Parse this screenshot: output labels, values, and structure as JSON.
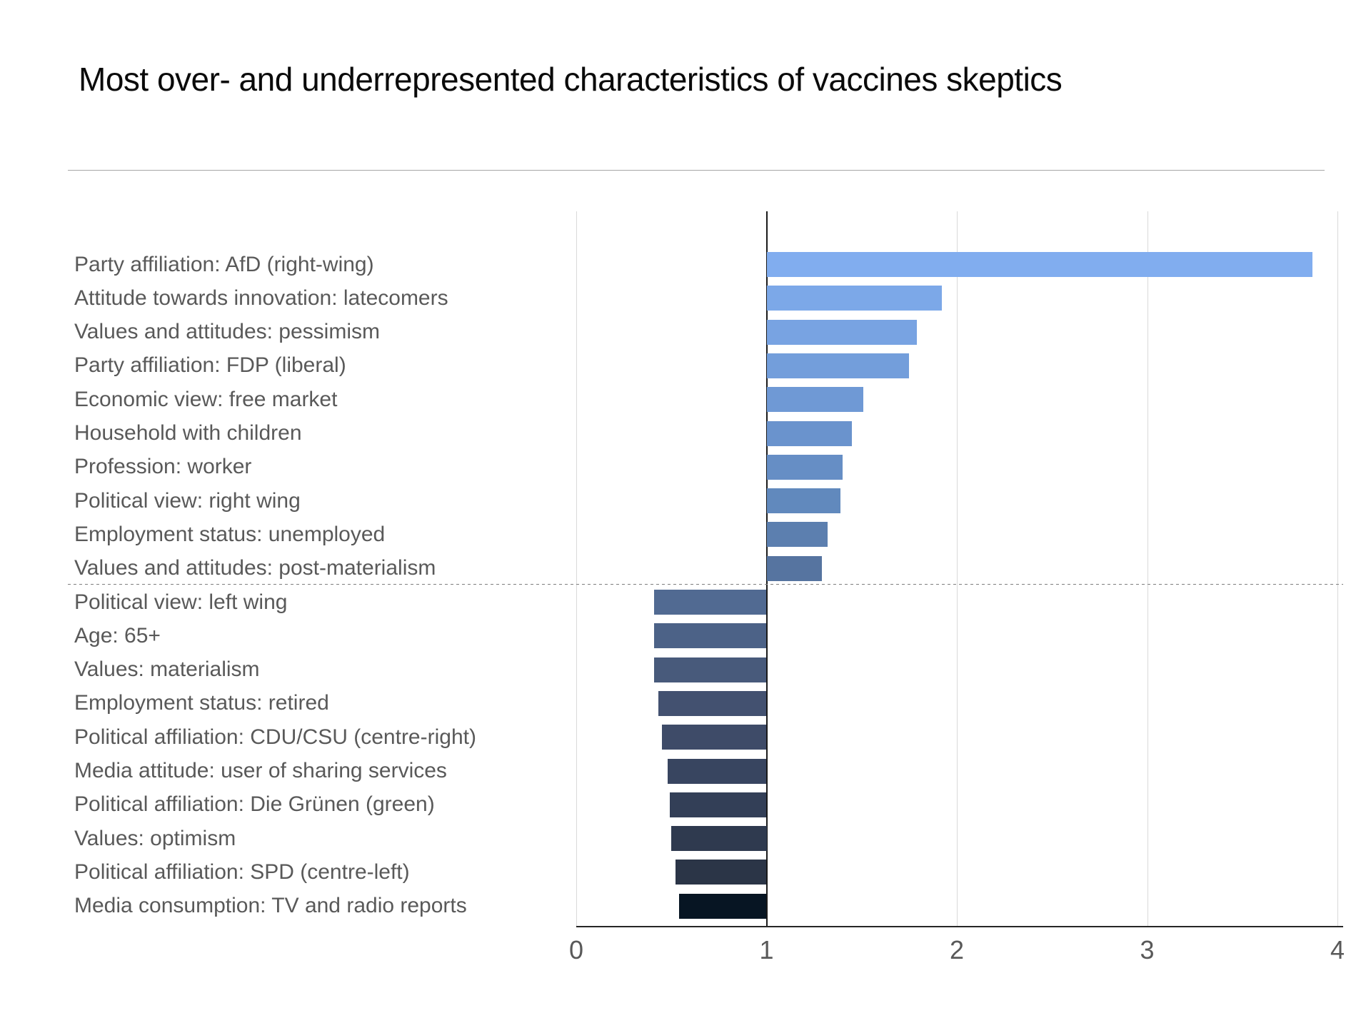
{
  "page": {
    "title": "Most over- and underrepresented characteristics of vaccines skeptics"
  },
  "chart_data": {
    "type": "bar",
    "orientation": "horizontal",
    "title": "Most over- and underrepresented characteristics of vaccines skeptics",
    "xlabel": "",
    "ylabel": "",
    "xlim": [
      0,
      4
    ],
    "x_ticks": [
      "0",
      "1",
      "2",
      "3",
      "4"
    ],
    "baseline_value": 1,
    "grid": "vertical-light",
    "separator_note": "dotted line separates overrepresented (ratio > 1) from underrepresented (ratio < 1) characteristics",
    "bar_color_style": "gradient from light blue (top) to near-black navy (bottom)",
    "items": [
      {
        "label": "Party affiliation: AfD (right-wing)",
        "value": 3.87,
        "color": "#81adef"
      },
      {
        "label": "Attitude towards innovation: latecomers",
        "value": 1.92,
        "color": "#7ca8e8"
      },
      {
        "label": "Values and attitudes: pessimism",
        "value": 1.79,
        "color": "#78a3e2"
      },
      {
        "label": "Party affiliation: FDP (liberal)",
        "value": 1.75,
        "color": "#739edb"
      },
      {
        "label": "Economic view: free market",
        "value": 1.51,
        "color": "#6f99d5"
      },
      {
        "label": "Household with children",
        "value": 1.45,
        "color": "#6a93cd"
      },
      {
        "label": "Profession: worker",
        "value": 1.4,
        "color": "#668ec5"
      },
      {
        "label": "Political view: right wing",
        "value": 1.39,
        "color": "#6189bd"
      },
      {
        "label": "Employment status: unemployed",
        "value": 1.32,
        "color": "#5c7faf"
      },
      {
        "label": "Values and attitudes: post-materialism",
        "value": 1.29,
        "color": "#5674a0"
      },
      {
        "label": "Political view: left wing",
        "value": 0.41,
        "color": "#516a92"
      },
      {
        "label": "Age: 65+",
        "value": 0.41,
        "color": "#4c6287"
      },
      {
        "label": "Values: materialism",
        "value": 0.41,
        "color": "#485a7b"
      },
      {
        "label": "Employment status: retired",
        "value": 0.43,
        "color": "#435170"
      },
      {
        "label": "Political affiliation: CDU/CSU (centre-right)",
        "value": 0.45,
        "color": "#3e4b68"
      },
      {
        "label": "Media attitude: user of sharing services",
        "value": 0.48,
        "color": "#384560"
      },
      {
        "label": "Political affiliation: Die Grünen (green)",
        "value": 0.49,
        "color": "#333f57"
      },
      {
        "label": "Values: optimism",
        "value": 0.5,
        "color": "#2f3a4f"
      },
      {
        "label": "Political affiliation: SPD (centre-left)",
        "value": 0.52,
        "color": "#2b3547"
      },
      {
        "label": "Media consumption: TV and radio reports",
        "value": 0.54,
        "color": "#071523"
      }
    ]
  }
}
